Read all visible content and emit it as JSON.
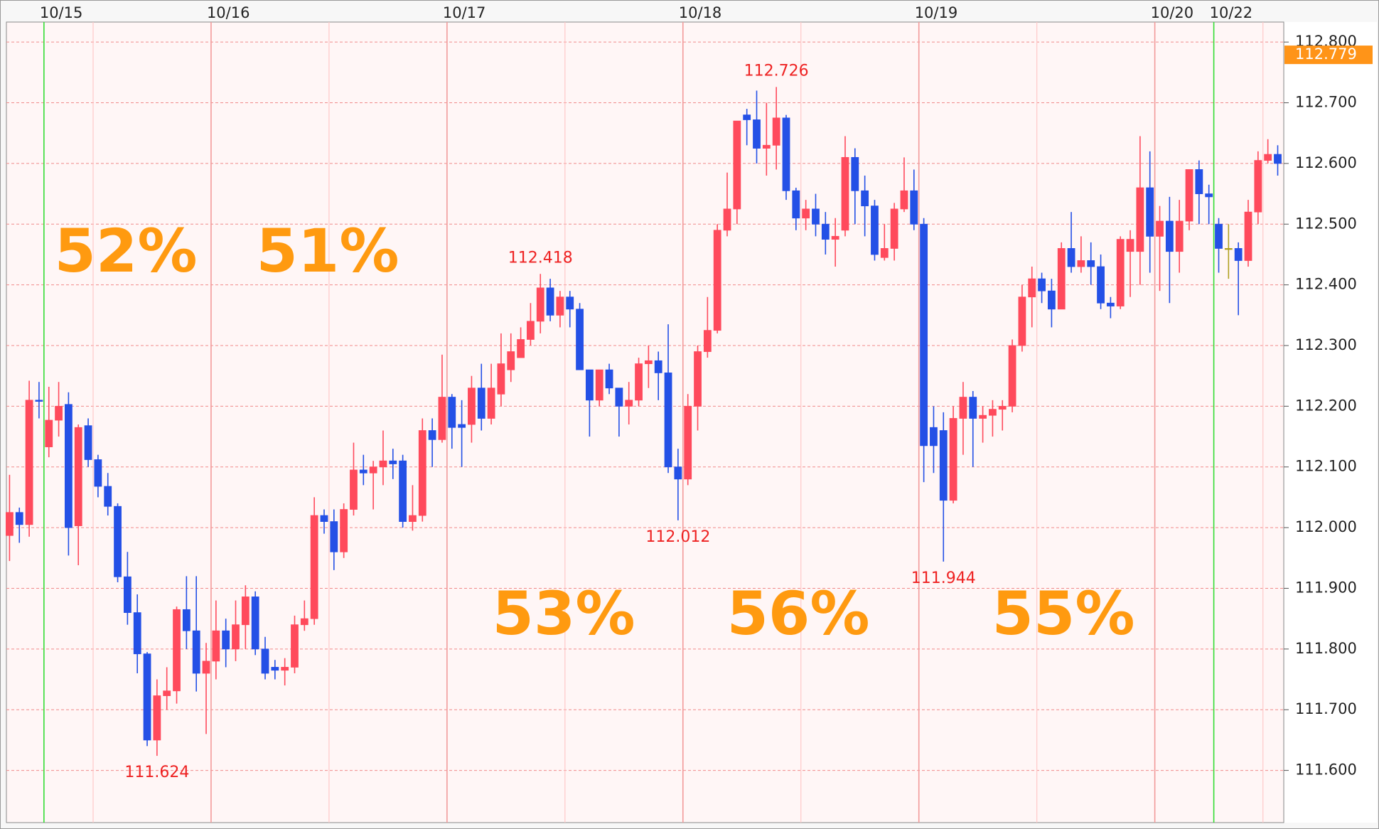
{
  "chart_data": {
    "type": "candlestick",
    "categories": [
      null,
      null,
      null,
      null,
      "10/15",
      null,
      null,
      null,
      null,
      null,
      null,
      null,
      null,
      null,
      null,
      null,
      null,
      null,
      null,
      null,
      null,
      "10/16",
      null,
      null,
      null,
      null,
      null,
      null,
      null,
      null,
      null,
      null,
      null,
      null,
      null,
      null,
      null,
      null,
      null,
      null,
      null,
      null,
      null,
      null,
      null,
      "10/17",
      null,
      null,
      null,
      null,
      null,
      null,
      null,
      null,
      null,
      null,
      null,
      null,
      null,
      null,
      null,
      null,
      null,
      null,
      null,
      null,
      null,
      null,
      null,
      "10/18",
      null,
      null,
      null,
      null,
      null,
      null,
      null,
      null,
      null,
      null,
      null,
      null,
      null,
      null,
      null,
      null,
      null,
      null,
      null,
      null,
      null,
      null,
      null,
      "10/19",
      null,
      null,
      null,
      null,
      null,
      null,
      null,
      null,
      null,
      null,
      null,
      null,
      null,
      null,
      null,
      null,
      null,
      null,
      null,
      null,
      null,
      null,
      null,
      "10/20",
      null,
      null,
      null,
      null,
      null,
      "10/22",
      null,
      null,
      null,
      null,
      null,
      null
    ],
    "open": [
      111.987,
      112.025,
      112.005,
      112.21,
      112.133,
      112.177,
      112.203,
      112.003,
      112.168,
      112.112,
      112.068,
      112.035,
      111.919,
      111.86,
      111.792,
      111.65,
      111.723,
      111.731,
      111.865,
      111.83,
      111.76,
      111.78,
      111.83,
      111.8,
      111.84,
      111.886,
      111.8,
      111.77,
      111.765,
      111.77,
      111.84,
      111.85,
      112.02,
      112.01,
      111.96,
      112.03,
      112.095,
      112.09,
      112.1,
      112.11,
      112.11,
      112.01,
      112.02,
      112.16,
      112.145,
      112.215,
      112.17,
      112.17,
      112.23,
      112.18,
      112.22,
      112.26,
      112.28,
      112.31,
      112.34,
      112.395,
      112.35,
      112.38,
      112.36,
      112.26,
      112.21,
      112.26,
      112.23,
      112.2,
      112.21,
      112.27,
      112.275,
      112.255,
      112.1,
      112.08,
      112.2,
      112.29,
      112.325,
      112.49,
      112.525,
      112.68,
      112.672,
      112.625,
      112.63,
      112.675,
      112.555,
      112.51,
      112.525,
      112.5,
      112.475,
      112.49,
      112.61,
      112.555,
      112.53,
      112.445,
      112.46,
      112.525,
      112.555,
      112.5,
      112.165,
      112.16,
      112.045,
      112.18,
      112.215,
      112.18,
      112.185,
      112.195,
      112.2,
      112.3,
      112.38,
      112.41,
      112.39,
      112.36,
      112.46,
      112.43,
      112.44,
      112.43,
      112.37,
      112.365,
      112.455,
      112.455,
      112.56,
      112.48,
      112.505,
      112.455,
      112.505,
      112.59,
      112.55,
      112.5,
      112.46,
      112.46,
      112.44,
      112.52,
      112.605,
      112.615
    ],
    "high": [
      112.087,
      112.033,
      112.242,
      112.24,
      112.232,
      112.24,
      112.223,
      112.17,
      112.18,
      112.12,
      112.09,
      112.04,
      111.96,
      111.89,
      111.795,
      111.75,
      111.77,
      111.87,
      111.92,
      111.92,
      111.81,
      111.88,
      111.85,
      111.88,
      111.905,
      111.895,
      111.82,
      111.782,
      111.785,
      111.855,
      111.88,
      112.05,
      112.03,
      112.03,
      112.04,
      112.14,
      112.12,
      112.11,
      112.16,
      112.13,
      112.12,
      112.07,
      112.18,
      112.18,
      112.285,
      112.22,
      112.21,
      112.25,
      112.27,
      112.27,
      112.32,
      112.32,
      112.33,
      112.37,
      112.418,
      112.41,
      112.39,
      112.39,
      112.37,
      112.26,
      112.26,
      112.27,
      112.23,
      112.24,
      112.28,
      112.3,
      112.29,
      112.335,
      112.13,
      112.22,
      112.3,
      112.38,
      112.5,
      112.585,
      112.67,
      112.69,
      112.72,
      112.7,
      112.726,
      112.68,
      112.56,
      112.54,
      112.55,
      112.52,
      112.51,
      112.645,
      112.625,
      112.58,
      112.54,
      112.5,
      112.535,
      112.61,
      112.59,
      112.51,
      112.2,
      112.19,
      112.2,
      112.24,
      112.225,
      112.2,
      112.21,
      112.21,
      112.31,
      112.4,
      112.43,
      112.42,
      112.41,
      112.47,
      112.52,
      112.48,
      112.47,
      112.45,
      112.38,
      112.48,
      112.49,
      112.645,
      112.62,
      112.53,
      112.545,
      112.54,
      112.59,
      112.605,
      112.565,
      112.51,
      112.5,
      112.47,
      112.54,
      112.62,
      112.64,
      112.63
    ],
    "low": [
      111.945,
      111.975,
      111.985,
      112.18,
      112.116,
      112.15,
      111.954,
      111.938,
      112.1,
      112.05,
      112.02,
      111.91,
      111.84,
      111.76,
      111.64,
      111.624,
      111.7,
      111.71,
      111.8,
      111.73,
      111.66,
      111.75,
      111.77,
      111.78,
      111.8,
      111.79,
      111.75,
      111.75,
      111.74,
      111.76,
      111.83,
      111.84,
      111.99,
      111.93,
      111.95,
      112.02,
      112.07,
      112.03,
      112.07,
      112.08,
      112.0,
      111.995,
      112.01,
      112.1,
      112.14,
      112.13,
      112.1,
      112.14,
      112.16,
      112.17,
      112.2,
      112.24,
      112.28,
      112.3,
      112.32,
      112.34,
      112.33,
      112.33,
      112.26,
      112.15,
      112.2,
      112.22,
      112.15,
      112.17,
      112.2,
      112.23,
      112.21,
      112.09,
      112.012,
      112.07,
      112.16,
      112.28,
      112.32,
      112.48,
      112.5,
      112.63,
      112.6,
      112.58,
      112.59,
      112.54,
      112.49,
      112.49,
      112.48,
      112.45,
      112.43,
      112.48,
      112.5,
      112.48,
      112.44,
      112.44,
      112.44,
      112.52,
      112.49,
      112.075,
      112.09,
      111.944,
      112.04,
      112.12,
      112.1,
      112.14,
      112.15,
      112.16,
      112.19,
      112.29,
      112.33,
      112.37,
      112.33,
      112.36,
      112.42,
      112.42,
      112.4,
      112.36,
      112.345,
      112.36,
      112.38,
      112.4,
      112.42,
      112.39,
      112.37,
      112.42,
      112.49,
      112.5,
      112.5,
      112.42,
      112.41,
      112.35,
      112.43,
      112.5,
      112.6,
      112.58
    ],
    "close": [
      112.025,
      112.005,
      112.21,
      112.208,
      112.177,
      112.2,
      112.0,
      112.165,
      112.112,
      112.068,
      112.035,
      111.919,
      111.86,
      111.792,
      111.65,
      111.723,
      111.731,
      111.865,
      111.83,
      111.76,
      111.78,
      111.83,
      111.8,
      111.84,
      111.886,
      111.8,
      111.76,
      111.765,
      111.77,
      111.84,
      111.85,
      112.02,
      112.01,
      111.96,
      112.03,
      112.095,
      112.09,
      112.1,
      112.11,
      112.105,
      112.01,
      112.02,
      112.16,
      112.145,
      112.215,
      112.165,
      112.165,
      112.23,
      112.18,
      112.23,
      112.27,
      112.29,
      112.31,
      112.34,
      112.395,
      112.35,
      112.38,
      112.36,
      112.26,
      112.21,
      112.26,
      112.23,
      112.2,
      112.21,
      112.27,
      112.275,
      112.255,
      112.1,
      112.08,
      112.2,
      112.29,
      112.325,
      112.49,
      112.525,
      112.67,
      112.672,
      112.625,
      112.63,
      112.675,
      112.555,
      112.51,
      112.525,
      112.5,
      112.475,
      112.48,
      112.61,
      112.555,
      112.53,
      112.45,
      112.46,
      112.525,
      112.555,
      112.5,
      112.135,
      112.135,
      112.045,
      112.18,
      112.215,
      112.18,
      112.185,
      112.195,
      112.2,
      112.3,
      112.38,
      112.41,
      112.39,
      112.36,
      112.46,
      112.43,
      112.44,
      112.43,
      112.37,
      112.365,
      112.475,
      112.475,
      112.56,
      112.48,
      112.505,
      112.455,
      112.505,
      112.59,
      112.55,
      112.545,
      112.46,
      112.46,
      112.44,
      112.52,
      112.605,
      112.615,
      112.6
    ],
    "up_color": "#ff4a5c",
    "down_color": "#2450e6",
    "doji_color": "#b0a020",
    "ylim": [
      111.514,
      112.833
    ],
    "yticks": [
      {
        "value": 111.6,
        "label": "111.600"
      },
      {
        "value": 111.7,
        "label": "111.700"
      },
      {
        "value": 111.8,
        "label": "111.800"
      },
      {
        "value": 111.9,
        "label": "111.900"
      },
      {
        "value": 112.0,
        "label": "112.000"
      },
      {
        "value": 112.1,
        "label": "112.100"
      },
      {
        "value": 112.2,
        "label": "112.200"
      },
      {
        "value": 112.3,
        "label": "112.300"
      },
      {
        "value": 112.4,
        "label": "112.400"
      },
      {
        "value": 112.5,
        "label": "112.500"
      },
      {
        "value": 112.6,
        "label": "112.600"
      },
      {
        "value": 112.7,
        "label": "112.700"
      },
      {
        "value": 112.8,
        "label": "112.800"
      }
    ],
    "grid": true,
    "last_price": 112.779,
    "annotations": [
      "52%",
      "51%",
      "53%",
      "56%",
      "55%"
    ]
  }
}
